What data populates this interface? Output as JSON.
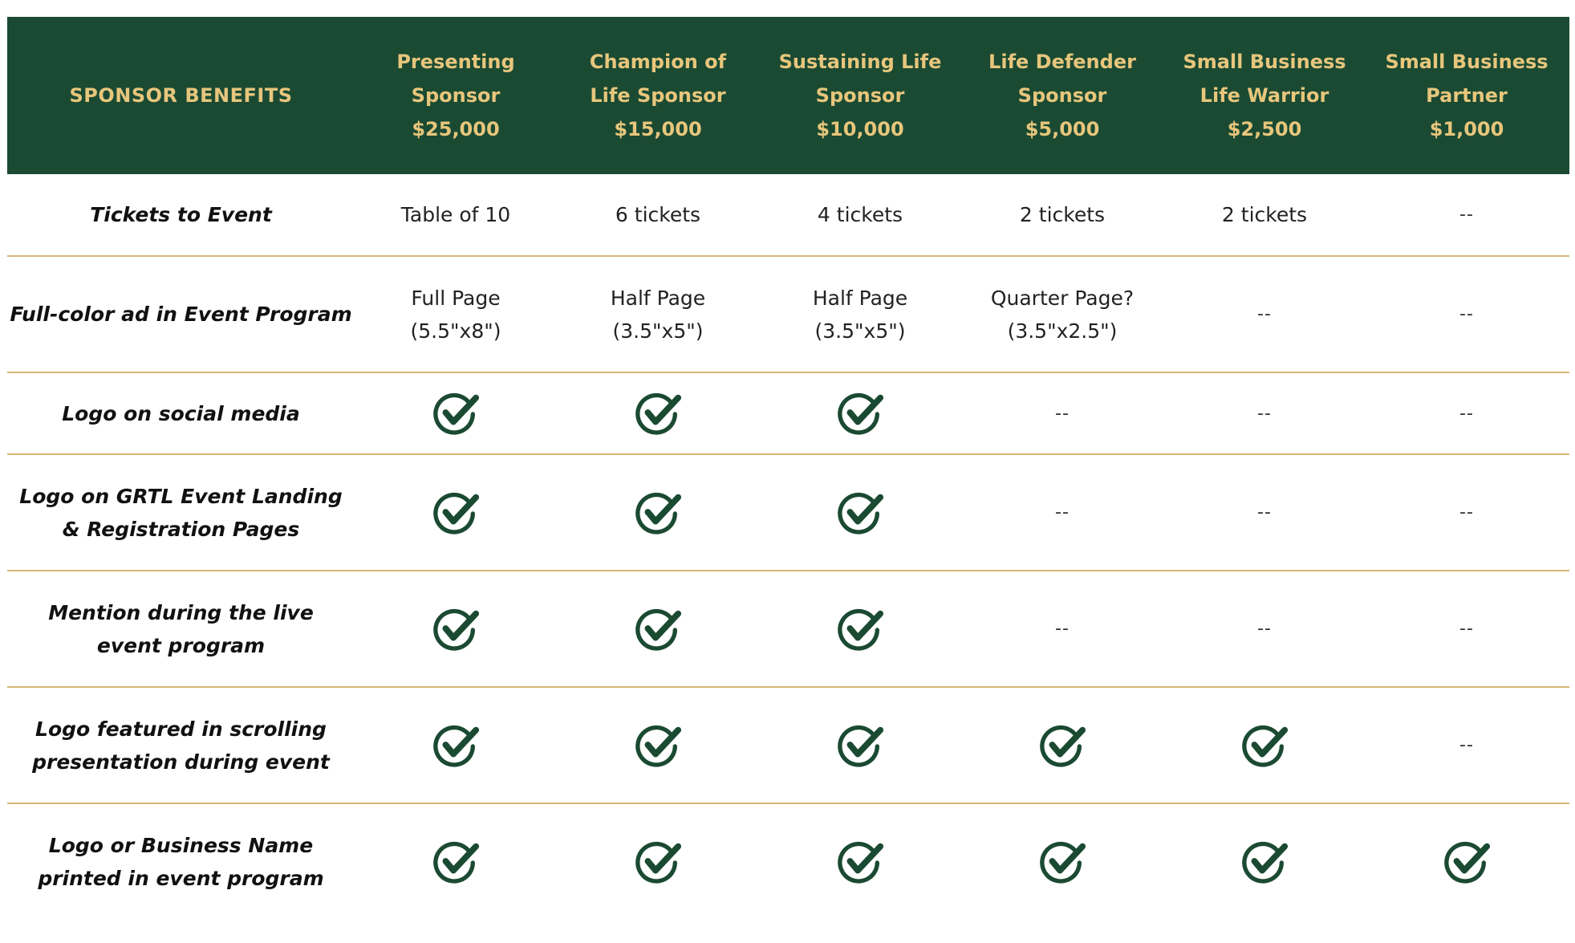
{
  "header": {
    "benefits_label": "SPONSOR BENEFITS",
    "tiers": [
      {
        "line1": "Presenting",
        "line2": "Sponsor",
        "price": "$25,000"
      },
      {
        "line1": "Champion of",
        "line2": "Life Sponsor",
        "price": "$15,000"
      },
      {
        "line1": "Sustaining Life",
        "line2": "Sponsor",
        "price": "$10,000"
      },
      {
        "line1": "Life Defender",
        "line2": "Sponsor",
        "price": "$5,000"
      },
      {
        "line1": "Small Business",
        "line2": "Life Warrior",
        "price": "$2,500"
      },
      {
        "line1": "Small Business",
        "line2": "Partner",
        "price": "$1,000"
      }
    ]
  },
  "rows": [
    {
      "benefit": [
        "Tickets to Event"
      ],
      "cells": [
        {
          "type": "text",
          "lines": [
            "Table of 10"
          ]
        },
        {
          "type": "text",
          "lines": [
            "6 tickets"
          ]
        },
        {
          "type": "text",
          "lines": [
            "4 tickets"
          ]
        },
        {
          "type": "text",
          "lines": [
            "2 tickets"
          ]
        },
        {
          "type": "text",
          "lines": [
            "2 tickets"
          ]
        },
        {
          "type": "dash",
          "lines": [
            "--"
          ]
        }
      ]
    },
    {
      "benefit": [
        "Full-color ad in Event Program"
      ],
      "cells": [
        {
          "type": "text",
          "lines": [
            "Full Page",
            "(5.5\"x8\")"
          ]
        },
        {
          "type": "text",
          "lines": [
            "Half Page",
            "(3.5\"x5\")"
          ]
        },
        {
          "type": "text",
          "lines": [
            "Half Page",
            "(3.5\"x5\")"
          ]
        },
        {
          "type": "text",
          "lines": [
            "Quarter Page?",
            "(3.5\"x2.5\")"
          ]
        },
        {
          "type": "dash",
          "lines": [
            "--"
          ]
        },
        {
          "type": "dash",
          "lines": [
            "--"
          ]
        }
      ]
    },
    {
      "benefit": [
        "Logo on social media"
      ],
      "cells": [
        {
          "type": "check",
          "icon": "check-circle-icon"
        },
        {
          "type": "check",
          "icon": "check-circle-icon"
        },
        {
          "type": "check",
          "icon": "check-circle-icon"
        },
        {
          "type": "dash",
          "lines": [
            "--"
          ]
        },
        {
          "type": "dash",
          "lines": [
            "--"
          ]
        },
        {
          "type": "dash",
          "lines": [
            "--"
          ]
        }
      ]
    },
    {
      "benefit": [
        "Logo on GRTL Event Landing",
        "& Registration Pages"
      ],
      "cells": [
        {
          "type": "check",
          "icon": "check-circle-icon"
        },
        {
          "type": "check",
          "icon": "check-circle-icon"
        },
        {
          "type": "check",
          "icon": "check-circle-icon"
        },
        {
          "type": "dash",
          "lines": [
            "--"
          ]
        },
        {
          "type": "dash",
          "lines": [
            "--"
          ]
        },
        {
          "type": "dash",
          "lines": [
            "--"
          ]
        }
      ]
    },
    {
      "benefit": [
        "Mention during the live",
        "event program"
      ],
      "cells": [
        {
          "type": "check",
          "icon": "check-circle-icon"
        },
        {
          "type": "check",
          "icon": "check-circle-icon"
        },
        {
          "type": "check",
          "icon": "check-circle-icon"
        },
        {
          "type": "dash",
          "lines": [
            "--"
          ]
        },
        {
          "type": "dash",
          "lines": [
            "--"
          ]
        },
        {
          "type": "dash",
          "lines": [
            "--"
          ]
        }
      ]
    },
    {
      "benefit": [
        "Logo featured in scrolling",
        "presentation during event"
      ],
      "cells": [
        {
          "type": "check",
          "icon": "check-circle-icon"
        },
        {
          "type": "check",
          "icon": "check-circle-icon"
        },
        {
          "type": "check",
          "icon": "check-circle-icon"
        },
        {
          "type": "check",
          "icon": "check-circle-icon"
        },
        {
          "type": "check",
          "icon": "check-circle-icon"
        },
        {
          "type": "dash",
          "lines": [
            "--"
          ]
        }
      ]
    },
    {
      "benefit": [
        "Logo or Business Name",
        "printed in event program"
      ],
      "cells": [
        {
          "type": "check",
          "icon": "check-circle-icon"
        },
        {
          "type": "check",
          "icon": "check-circle-icon"
        },
        {
          "type": "check",
          "icon": "check-circle-icon"
        },
        {
          "type": "check",
          "icon": "check-circle-icon"
        },
        {
          "type": "check",
          "icon": "check-circle-icon"
        },
        {
          "type": "check",
          "icon": "check-circle-icon"
        }
      ]
    }
  ],
  "colors": {
    "header_bg": "#1b4a32",
    "header_text": "#e7c67c",
    "divider": "#d7b577",
    "check": "#1b4a32"
  }
}
